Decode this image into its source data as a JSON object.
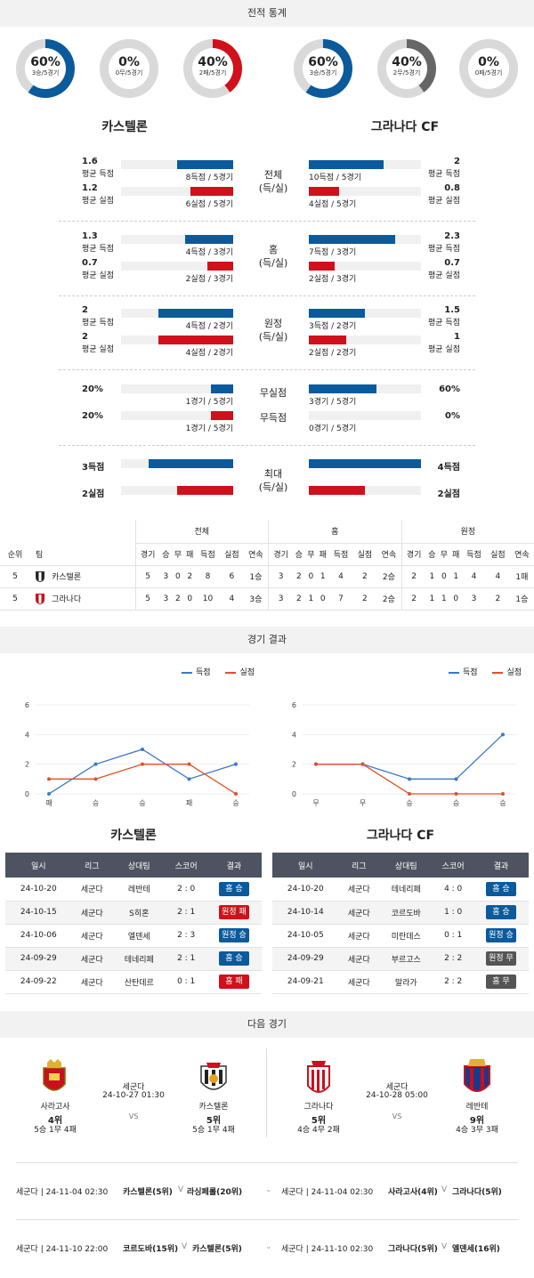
{
  "sections": {
    "stats": "전적 통계",
    "results": "경기 결과",
    "next": "다음 경기"
  },
  "home": {
    "name": "카스텔론",
    "donuts": [
      {
        "pct": "60%",
        "sub": "3승/5경기",
        "value": 0.6,
        "color": "#0a5a9c"
      },
      {
        "pct": "0%",
        "sub": "0무/5경기",
        "value": 0,
        "color": "#666666"
      },
      {
        "pct": "40%",
        "sub": "2패/5경기",
        "value": 0.4,
        "color": "#d0101b"
      }
    ]
  },
  "away": {
    "name": "그라나다 CF",
    "donuts": [
      {
        "pct": "60%",
        "sub": "3승/5경기",
        "value": 0.6,
        "color": "#0a5a9c"
      },
      {
        "pct": "40%",
        "sub": "2무/5경기",
        "value": 0.4,
        "color": "#666666"
      },
      {
        "pct": "0%",
        "sub": "0패/5경기",
        "value": 0,
        "color": "#d0101b"
      }
    ]
  },
  "compare": [
    {
      "label": "전체",
      "label2": "(득/실)",
      "rows": [
        {
          "lv": "1.6",
          "lname": "평균 득점",
          "lbar": "8득점 / 5경기",
          "lfrac": 0.5,
          "rv": "2",
          "rname": "평균 득점",
          "rbar": "10득점 / 5경기",
          "rfrac": 0.67,
          "color": "blue"
        },
        {
          "lv": "1.2",
          "lname": "평균 실점",
          "lbar": "6실점 / 5경기",
          "lfrac": 0.38,
          "rv": "0.8",
          "rname": "평균 실점",
          "rbar": "4실점 / 5경기",
          "rfrac": 0.27,
          "color": "red"
        }
      ]
    },
    {
      "label": "홈",
      "label2": "(득/실)",
      "rows": [
        {
          "lv": "1.3",
          "lname": "평균 득점",
          "lbar": "4득점 / 3경기",
          "lfrac": 0.43,
          "rv": "2.3",
          "rname": "평균 득점",
          "rbar": "7득점 / 3경기",
          "rfrac": 0.77,
          "color": "blue"
        },
        {
          "lv": "0.7",
          "lname": "평균 실점",
          "lbar": "2실점 / 3경기",
          "lfrac": 0.23,
          "rv": "0.7",
          "rname": "평균 실점",
          "rbar": "2실점 / 3경기",
          "rfrac": 0.23,
          "color": "red"
        }
      ]
    },
    {
      "label": "원정",
      "label2": "(득/실)",
      "rows": [
        {
          "lv": "2",
          "lname": "평균 득점",
          "lbar": "4득점 / 2경기",
          "lfrac": 0.67,
          "rv": "1.5",
          "rname": "평균 득점",
          "rbar": "3득점 / 2경기",
          "rfrac": 0.5,
          "color": "blue"
        },
        {
          "lv": "2",
          "lname": "평균 실점",
          "lbar": "4실점 / 2경기",
          "lfrac": 0.67,
          "rv": "1",
          "rname": "평균 실점",
          "rbar": "2실점 / 2경기",
          "rfrac": 0.33,
          "color": "red"
        }
      ]
    },
    {
      "label": "무실점",
      "label2": "",
      "label3": "무득점",
      "rows": [
        {
          "lv": "20%",
          "lname": "",
          "lbar": "1경기 / 5경기",
          "lfrac": 0.2,
          "rv": "60%",
          "rname": "",
          "rbar": "3경기 / 5경기",
          "rfrac": 0.6,
          "color": "blue"
        },
        {
          "lv": "20%",
          "lname": "",
          "lbar": "1경기 / 5경기",
          "lfrac": 0.2,
          "rv": "0%",
          "rname": "",
          "rbar": "0경기 / 5경기",
          "rfrac": 0,
          "color": "red"
        }
      ]
    },
    {
      "label": "최대",
      "label2": "(득/실)",
      "rows": [
        {
          "lv": "3득점",
          "lname": "",
          "lbar": "",
          "lfrac": 0.75,
          "rv": "4득점",
          "rname": "",
          "rbar": "",
          "rfrac": 1,
          "color": "blue"
        },
        {
          "lv": "2실점",
          "lname": "",
          "lbar": "",
          "lfrac": 0.5,
          "rv": "2실점",
          "rname": "",
          "rbar": "",
          "rfrac": 0.5,
          "color": "red"
        }
      ]
    }
  ],
  "standings": {
    "groups": [
      "전체",
      "홈",
      "원정"
    ],
    "cols": [
      "순위",
      "팀",
      "경기",
      "승",
      "무",
      "패",
      "득점",
      "실점",
      "연속",
      "경기",
      "승",
      "무",
      "패",
      "득점",
      "실점",
      "연속",
      "경기",
      "승",
      "무",
      "패",
      "득점",
      "실점",
      "연속"
    ],
    "rows": [
      [
        "5",
        "카스텔론",
        "5",
        "3",
        "0",
        "2",
        "8",
        "6",
        "1승",
        "3",
        "2",
        "0",
        "1",
        "4",
        "2",
        "2승",
        "2",
        "1",
        "0",
        "1",
        "4",
        "4",
        "1패"
      ],
      [
        "5",
        "그라나다",
        "5",
        "3",
        "2",
        "0",
        "10",
        "4",
        "3승",
        "3",
        "2",
        "1",
        "0",
        "7",
        "2",
        "2승",
        "2",
        "1",
        "1",
        "0",
        "3",
        "2",
        "1승"
      ]
    ]
  },
  "charts": {
    "legend_for": "득점",
    "legend_against": "실점",
    "chart_data": [
      {
        "type": "line",
        "team": "카스텔론",
        "categories": [
          "패",
          "승",
          "승",
          "패",
          "승"
        ],
        "ylim": [
          0,
          6
        ],
        "yticks": [
          0,
          2,
          4,
          6
        ],
        "series": [
          {
            "name": "득점",
            "color": "#3a78c8",
            "values": [
              0,
              2,
              3,
              1,
              2
            ]
          },
          {
            "name": "실점",
            "color": "#e0502a",
            "values": [
              1,
              1,
              2,
              2,
              0
            ]
          }
        ]
      },
      {
        "type": "line",
        "team": "그라나다 CF",
        "categories": [
          "무",
          "무",
          "승",
          "승",
          "승"
        ],
        "ylim": [
          0,
          6
        ],
        "yticks": [
          0,
          2,
          4,
          6
        ],
        "series": [
          {
            "name": "득점",
            "color": "#3a78c8",
            "values": [
              2,
              2,
              1,
              1,
              4
            ]
          },
          {
            "name": "실점",
            "color": "#e0502a",
            "values": [
              2,
              2,
              0,
              0,
              0
            ]
          }
        ]
      }
    ]
  },
  "results": {
    "headers": [
      "일시",
      "리그",
      "상대팀",
      "스코어",
      "결과"
    ],
    "home": [
      [
        "24-10-20",
        "세군다",
        "레반테",
        "2 : 0",
        "홈 승",
        "blue"
      ],
      [
        "24-10-15",
        "세군다",
        "S히혼",
        "2 : 1",
        "원정 패",
        "red"
      ],
      [
        "24-10-06",
        "세군다",
        "엘덴세",
        "2 : 3",
        "원정 승",
        "blue"
      ],
      [
        "24-09-29",
        "세군다",
        "테네리페",
        "2 : 1",
        "홈 승",
        "blue"
      ],
      [
        "24-09-22",
        "세군다",
        "산탄데르",
        "0 : 1",
        "홈 패",
        "red"
      ]
    ],
    "away": [
      [
        "24-10-20",
        "세군다",
        "테네리페",
        "4 : 0",
        "홈 승",
        "blue"
      ],
      [
        "24-10-14",
        "세군다",
        "코르도바",
        "1 : 0",
        "홈 승",
        "blue"
      ],
      [
        "24-10-05",
        "세군다",
        "미란데스",
        "0 : 1",
        "원정 승",
        "blue"
      ],
      [
        "24-09-29",
        "세군다",
        "부르고스",
        "2 : 2",
        "원정 무",
        "gray"
      ],
      [
        "24-09-21",
        "세군다",
        "말라가",
        "2 : 2",
        "홈 무",
        "gray"
      ]
    ]
  },
  "next": {
    "match1": {
      "league": "세군다",
      "date": "24-10-27 01:30",
      "home": "사라고사",
      "home_rank": "4위",
      "home_rec": "5승 1무 4패",
      "away": "카스텔론",
      "away_rank": "5위",
      "away_rec": "5승 1무 4패"
    },
    "match2": {
      "league": "세군다",
      "date": "24-10-28 05:00",
      "vs": "VS",
      "home": "그라나다",
      "home_rank": "5위",
      "home_rec": "4승 4무 2패",
      "away": "레반테",
      "away_rank": "9위",
      "away_rec": "4승 3무 3패"
    },
    "list": [
      {
        "l_league": "세군다 | 24-11-04 02:30",
        "l_home": "카스텔론(5위)",
        "l_v": "V",
        "l_away": "라싱페롤(20위)",
        "r_league": "세군다 | 24-11-04 02:30",
        "r_home": "사라고사(4위)",
        "r_v": "V",
        "r_away": "그라나다(5위)"
      },
      {
        "l_league": "세군다 | 24-11-10 22:00",
        "l_home": "코르도바(15위)",
        "l_v": "V",
        "l_away": "카스텔론(5위)",
        "r_league": "세군다 | 24-11-10 02:30",
        "r_home": "그라나다(5위)",
        "r_v": "V",
        "r_away": "엘덴세(16위)"
      }
    ]
  }
}
